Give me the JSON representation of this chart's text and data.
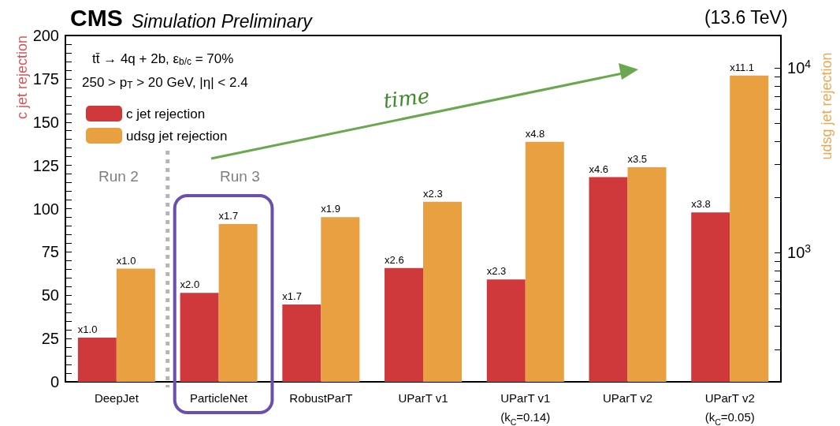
{
  "chart_data": {
    "type": "bar",
    "title": "CMS",
    "subtitle": "Simulation Preliminary",
    "ylabel": "c jet rejection",
    "y2label": "udsg jet rejection",
    "categories": [
      "DeepJet",
      "ParticleNet",
      "RobustParT",
      "UParT v1",
      "UParT v1\n(k$_{C}$=0.14)",
      "UParT v2",
      "UParT v2\n(k$_{C}$=0.05)"
    ],
    "series": [
      {
        "name": "c jet rejection",
        "color": "#d0393b",
        "values": [
          25.5,
          51.4,
          44.6,
          65.7,
          59.1,
          118.2,
          97.8
        ],
        "value_labels": [
          "x1.0",
          "x2.0",
          "x1.7",
          "x2.6",
          "x2.3",
          "x4.6",
          "x3.8"
        ]
      },
      {
        "name": "udsg jet rejection",
        "color": "#e8a040",
        "axis": "y2",
        "values": [
          820,
          1430,
          1560,
          1890,
          3990,
          2900,
          9100
        ],
        "value_labels": [
          "x1.0",
          "x1.7",
          "x1.9",
          "x2.3",
          "x4.8",
          "x3.5",
          "x11.1"
        ]
      }
    ],
    "ylim": [
      0,
      200
    ],
    "yticks": [
      0,
      {
        "value": 5,
        "label": null
      },
      {
        "value": 10,
        "label": null
      },
      {
        "value": 15,
        "label": null
      },
      {
        "value": 20,
        "label": null
      },
      25,
      {
        "value": 30,
        "label": null
      },
      {
        "value": 35,
        "label": null
      },
      {
        "value": 40,
        "label": null
      },
      {
        "value": 45,
        "label": null
      },
      50,
      {
        "value": 55,
        "label": null
      },
      {
        "value": 60,
        "label": null
      },
      {
        "value": 65,
        "label": null
      },
      {
        "value": 70,
        "label": null
      },
      75,
      {
        "value": 80,
        "label": null
      },
      {
        "value": 85,
        "label": null
      },
      {
        "value": 90,
        "label": null
      },
      {
        "value": 95,
        "label": null
      },
      100,
      {
        "value": 105,
        "label": null
      },
      {
        "value": 110,
        "label": null
      },
      {
        "value": 115,
        "label": null
      },
      {
        "value": 120,
        "label": null
      },
      125,
      {
        "value": 130,
        "label": null
      },
      {
        "value": 135,
        "label": null
      },
      {
        "value": 140,
        "label": null
      },
      {
        "value": 145,
        "label": null
      },
      150,
      {
        "value": 155,
        "label": null
      },
      {
        "value": 160,
        "label": null
      },
      {
        "value": 165,
        "label": null
      },
      {
        "value": 170,
        "label": null
      },
      175,
      {
        "value": 180,
        "label": null
      },
      {
        "value": 185,
        "label": null
      },
      {
        "value": 190,
        "label": null
      },
      {
        "value": 195,
        "label": null
      },
      200
    ],
    "y2lim": [
      200,
      15000
    ],
    "y2ticks": [
      {
        "value": 300,
        "label": null
      },
      {
        "value": 400,
        "label": null
      },
      {
        "value": 500,
        "label": null
      },
      {
        "value": 600,
        "label": null
      },
      {
        "value": 700,
        "label": null
      },
      {
        "value": 800,
        "label": null
      },
      {
        "value": 900,
        "label": null
      },
      {
        "value": 1000,
        "label": "10$^{3}$"
      },
      {
        "value": 2000,
        "label": null
      },
      {
        "value": 3000,
        "label": null
      },
      {
        "value": 4000,
        "label": null
      },
      {
        "value": 5000,
        "label": null
      },
      {
        "value": 6000,
        "label": null
      },
      {
        "value": 7000,
        "label": null
      },
      {
        "value": 8000,
        "label": null
      },
      {
        "value": 9000,
        "label": null
      },
      {
        "value": 10000,
        "label": "10$^{4}$"
      }
    ],
    "log": "y2",
    "legend": "top left",
    "grid": false,
    "annotations": [
      "(13.6 TeV)",
      "tt̄ → 4q + 2b, ε$_{b/c}$ = 70%",
      "250 > p$_{T}$ > 20 GeV, |η| < 2.4",
      "Run 2",
      "Run 3",
      "time"
    ]
  }
}
